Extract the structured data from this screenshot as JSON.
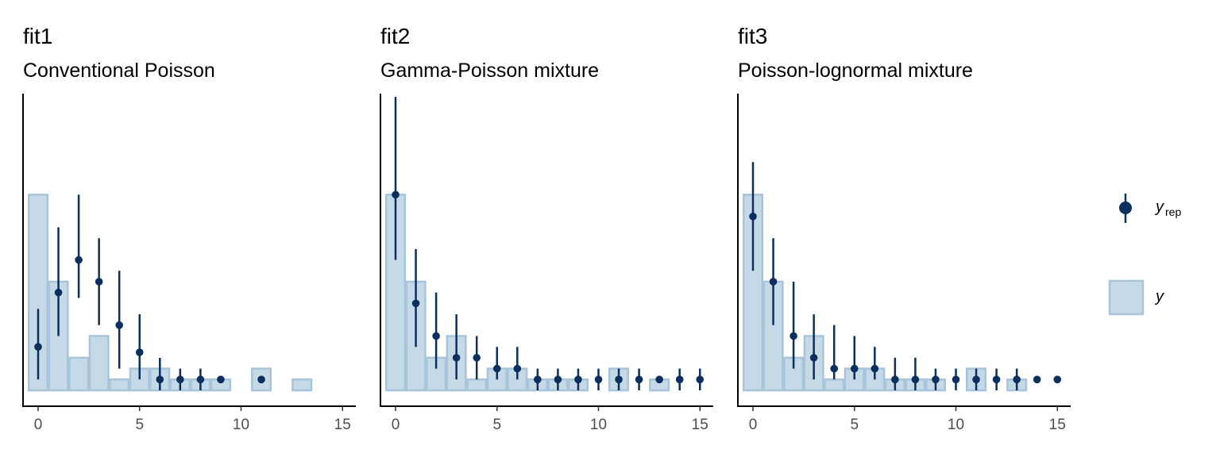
{
  "colors": {
    "bar_fill": "#c6d9e7",
    "bar_stroke": "#a7c4db",
    "point": "#0b2f5f",
    "axis": "#000000",
    "tick_label": "#4d4d4d"
  },
  "legend": {
    "yrep_main": "y",
    "yrep_sub": "rep",
    "y_label": "y",
    "placement": "right"
  },
  "chart_data": [
    {
      "type": "bar",
      "title": "fit1",
      "subtitle": "Conventional Poisson",
      "xlim": [
        -0.5,
        15.5
      ],
      "ylim": [
        0,
        0.27
      ],
      "xticks": [
        0,
        5,
        10,
        15
      ],
      "y_observed": [
        {
          "x": 0,
          "y": 0.18
        },
        {
          "x": 1,
          "y": 0.1
        },
        {
          "x": 2,
          "y": 0.03
        },
        {
          "x": 3,
          "y": 0.05
        },
        {
          "x": 4,
          "y": 0.01
        },
        {
          "x": 5,
          "y": 0.02
        },
        {
          "x": 6,
          "y": 0.02
        },
        {
          "x": 7,
          "y": 0.01
        },
        {
          "x": 8,
          "y": 0.01
        },
        {
          "x": 9,
          "y": 0.01
        },
        {
          "x": 11,
          "y": 0.02
        },
        {
          "x": 13,
          "y": 0.01
        }
      ],
      "y_rep": [
        {
          "x": 0,
          "mid": 0.04,
          "lo": 0.01,
          "hi": 0.075
        },
        {
          "x": 1,
          "mid": 0.09,
          "lo": 0.05,
          "hi": 0.15
        },
        {
          "x": 2,
          "mid": 0.12,
          "lo": 0.085,
          "hi": 0.18
        },
        {
          "x": 3,
          "mid": 0.1,
          "lo": 0.06,
          "hi": 0.14
        },
        {
          "x": 4,
          "mid": 0.06,
          "lo": 0.02,
          "hi": 0.11
        },
        {
          "x": 5,
          "mid": 0.035,
          "lo": 0.01,
          "hi": 0.07
        },
        {
          "x": 6,
          "mid": 0.01,
          "lo": 0.0,
          "hi": 0.03
        },
        {
          "x": 7,
          "mid": 0.01,
          "lo": 0.0,
          "hi": 0.02
        },
        {
          "x": 8,
          "mid": 0.01,
          "lo": 0.0,
          "hi": 0.02
        },
        {
          "x": 9,
          "mid": 0.01,
          "lo": 0.01,
          "hi": 0.01
        },
        {
          "x": 11,
          "mid": 0.01,
          "lo": 0.01,
          "hi": 0.01
        }
      ]
    },
    {
      "type": "bar",
      "title": "fit2",
      "subtitle": "Gamma-Poisson mixture",
      "xlim": [
        -0.5,
        15.5
      ],
      "ylim": [
        0,
        0.27
      ],
      "xticks": [
        0,
        5,
        10,
        15
      ],
      "y_observed": [
        {
          "x": 0,
          "y": 0.18
        },
        {
          "x": 1,
          "y": 0.1
        },
        {
          "x": 2,
          "y": 0.03
        },
        {
          "x": 3,
          "y": 0.05
        },
        {
          "x": 4,
          "y": 0.01
        },
        {
          "x": 5,
          "y": 0.02
        },
        {
          "x": 6,
          "y": 0.02
        },
        {
          "x": 7,
          "y": 0.01
        },
        {
          "x": 8,
          "y": 0.01
        },
        {
          "x": 9,
          "y": 0.01
        },
        {
          "x": 11,
          "y": 0.02
        },
        {
          "x": 13,
          "y": 0.01
        }
      ],
      "y_rep": [
        {
          "x": 0,
          "mid": 0.18,
          "lo": 0.12,
          "hi": 0.27
        },
        {
          "x": 1,
          "mid": 0.08,
          "lo": 0.04,
          "hi": 0.13
        },
        {
          "x": 2,
          "mid": 0.05,
          "lo": 0.02,
          "hi": 0.09
        },
        {
          "x": 3,
          "mid": 0.03,
          "lo": 0.01,
          "hi": 0.07
        },
        {
          "x": 4,
          "mid": 0.03,
          "lo": 0.01,
          "hi": 0.05
        },
        {
          "x": 5,
          "mid": 0.02,
          "lo": 0.01,
          "hi": 0.04
        },
        {
          "x": 6,
          "mid": 0.02,
          "lo": 0.01,
          "hi": 0.04
        },
        {
          "x": 7,
          "mid": 0.01,
          "lo": 0.0,
          "hi": 0.02
        },
        {
          "x": 8,
          "mid": 0.01,
          "lo": 0.0,
          "hi": 0.02
        },
        {
          "x": 9,
          "mid": 0.01,
          "lo": 0.0,
          "hi": 0.02
        },
        {
          "x": 10,
          "mid": 0.01,
          "lo": 0.0,
          "hi": 0.02
        },
        {
          "x": 11,
          "mid": 0.01,
          "lo": 0.0,
          "hi": 0.02
        },
        {
          "x": 12,
          "mid": 0.01,
          "lo": 0.0,
          "hi": 0.02
        },
        {
          "x": 13,
          "mid": 0.01,
          "lo": 0.01,
          "hi": 0.01
        },
        {
          "x": 14,
          "mid": 0.01,
          "lo": 0.0,
          "hi": 0.02
        },
        {
          "x": 15,
          "mid": 0.01,
          "lo": 0.0,
          "hi": 0.02
        }
      ]
    },
    {
      "type": "bar",
      "title": "fit3",
      "subtitle": "Poisson-lognormal mixture",
      "xlim": [
        -0.5,
        15.5
      ],
      "ylim": [
        0,
        0.27
      ],
      "xticks": [
        0,
        5,
        10,
        15
      ],
      "y_observed": [
        {
          "x": 0,
          "y": 0.18
        },
        {
          "x": 1,
          "y": 0.1
        },
        {
          "x": 2,
          "y": 0.03
        },
        {
          "x": 3,
          "y": 0.05
        },
        {
          "x": 4,
          "y": 0.01
        },
        {
          "x": 5,
          "y": 0.02
        },
        {
          "x": 6,
          "y": 0.02
        },
        {
          "x": 7,
          "y": 0.01
        },
        {
          "x": 8,
          "y": 0.01
        },
        {
          "x": 9,
          "y": 0.01
        },
        {
          "x": 11,
          "y": 0.02
        },
        {
          "x": 13,
          "y": 0.01
        }
      ],
      "y_rep": [
        {
          "x": 0,
          "mid": 0.16,
          "lo": 0.11,
          "hi": 0.21
        },
        {
          "x": 1,
          "mid": 0.1,
          "lo": 0.06,
          "hi": 0.14
        },
        {
          "x": 2,
          "mid": 0.05,
          "lo": 0.02,
          "hi": 0.1
        },
        {
          "x": 3,
          "mid": 0.03,
          "lo": 0.01,
          "hi": 0.07
        },
        {
          "x": 4,
          "mid": 0.02,
          "lo": 0.01,
          "hi": 0.06
        },
        {
          "x": 5,
          "mid": 0.02,
          "lo": 0.01,
          "hi": 0.05
        },
        {
          "x": 6,
          "mid": 0.02,
          "lo": 0.01,
          "hi": 0.04
        },
        {
          "x": 7,
          "mid": 0.01,
          "lo": 0.0,
          "hi": 0.03
        },
        {
          "x": 8,
          "mid": 0.01,
          "lo": 0.0,
          "hi": 0.03
        },
        {
          "x": 9,
          "mid": 0.01,
          "lo": 0.0,
          "hi": 0.02
        },
        {
          "x": 10,
          "mid": 0.01,
          "lo": 0.0,
          "hi": 0.02
        },
        {
          "x": 11,
          "mid": 0.01,
          "lo": 0.0,
          "hi": 0.02
        },
        {
          "x": 12,
          "mid": 0.01,
          "lo": 0.0,
          "hi": 0.02
        },
        {
          "x": 13,
          "mid": 0.01,
          "lo": 0.0,
          "hi": 0.02
        },
        {
          "x": 14,
          "mid": 0.01,
          "lo": 0.01,
          "hi": 0.01
        },
        {
          "x": 15,
          "mid": 0.01,
          "lo": 0.01,
          "hi": 0.01
        }
      ]
    }
  ]
}
